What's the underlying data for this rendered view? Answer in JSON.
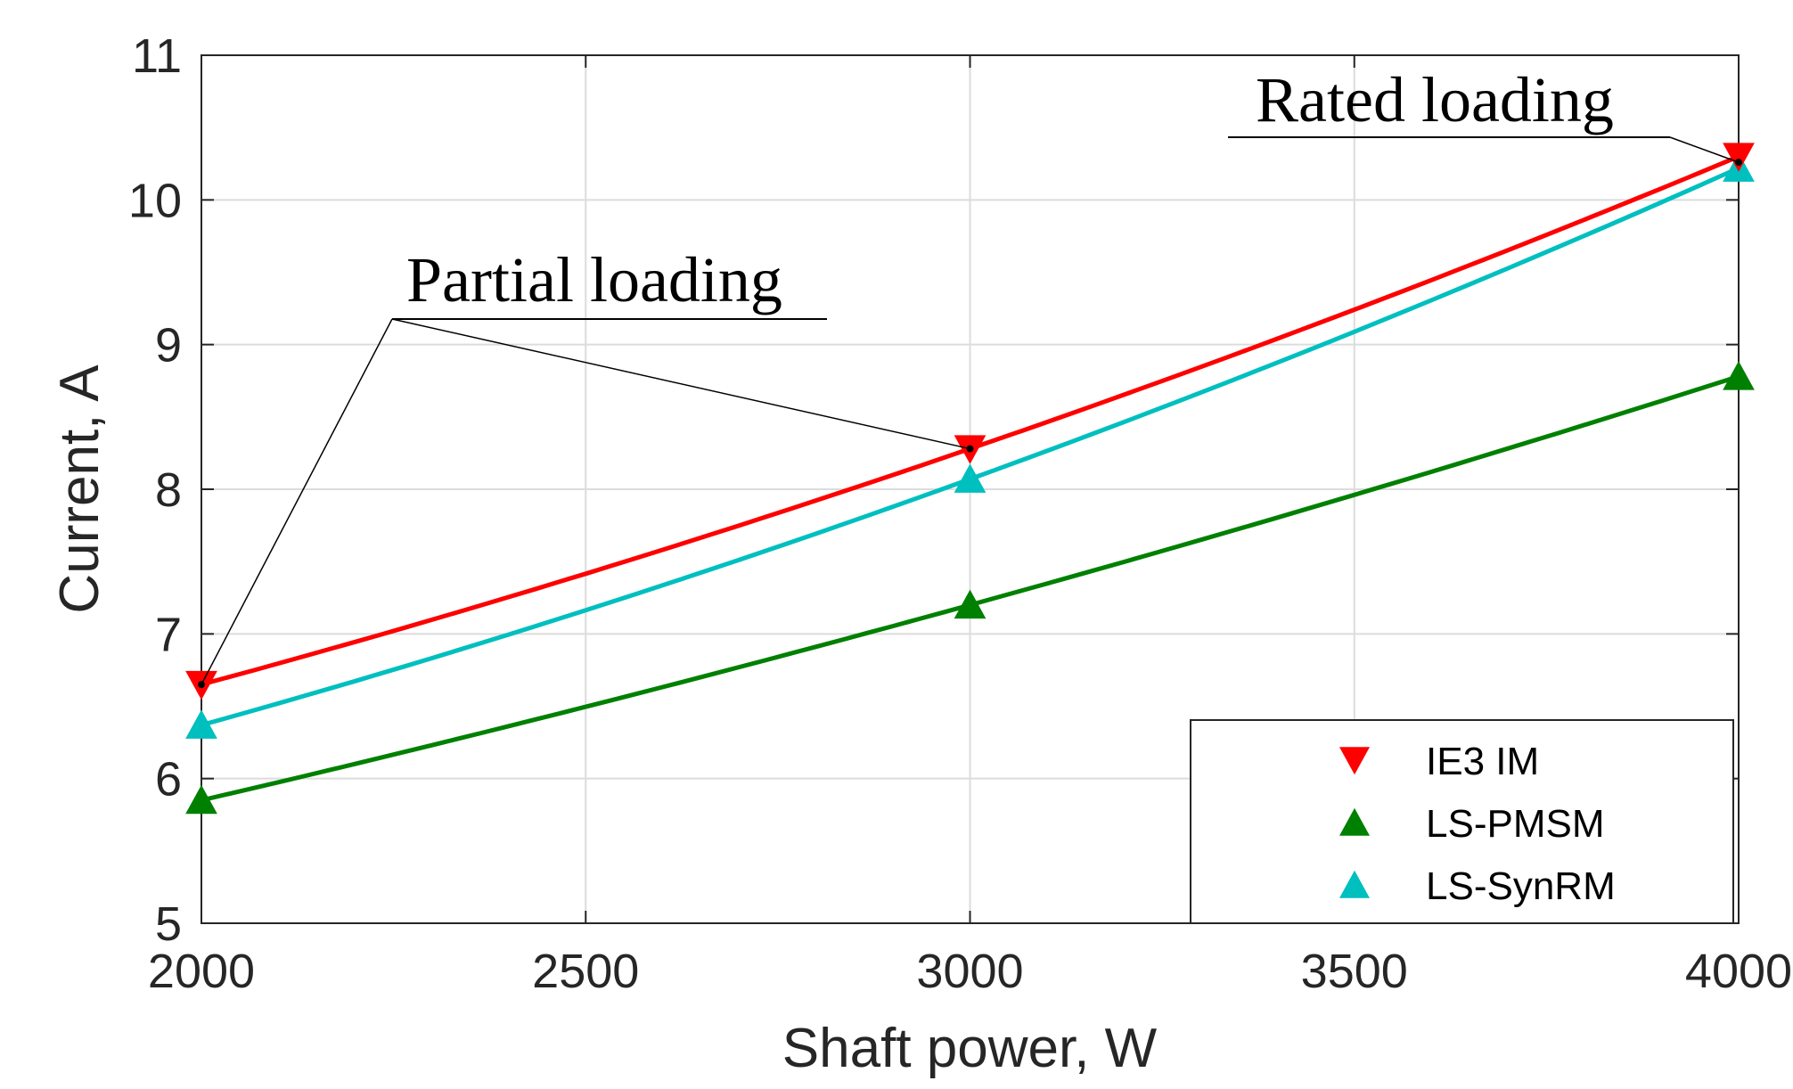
{
  "chart_data": {
    "type": "line",
    "title": "",
    "xlabel": "Shaft power, W",
    "ylabel": "Current, A",
    "xlim": [
      2000,
      4000
    ],
    "ylim": [
      5,
      11
    ],
    "xticks": [
      2000,
      2500,
      3000,
      3500,
      4000
    ],
    "yticks": [
      5,
      6,
      7,
      8,
      9,
      10,
      11
    ],
    "xtick_labels": [
      "2000",
      "2500",
      "3000",
      "3500",
      "4000"
    ],
    "ytick_labels": [
      "5",
      "6",
      "7",
      "8",
      "9",
      "10",
      "11"
    ],
    "grid": true,
    "legend_position": "bottom-right",
    "x": [
      2000,
      3000,
      4000
    ],
    "series": [
      {
        "name": "IE3 IM",
        "values": [
          6.65,
          8.28,
          10.3
        ],
        "color": "#ff0000",
        "marker": "triangle-down"
      },
      {
        "name": "LS-PMSM",
        "values": [
          5.85,
          7.2,
          8.78
        ],
        "color": "#008000",
        "marker": "triangle-up"
      },
      {
        "name": "LS-SynRM",
        "values": [
          6.37,
          8.07,
          10.22
        ],
        "color": "#00bfbf",
        "marker": "triangle-up"
      }
    ],
    "annotations": [
      {
        "text": "Partial loading",
        "points": [
          [
            2000,
            6.65
          ],
          [
            3000,
            8.28
          ]
        ]
      },
      {
        "text": "Rated loading",
        "points": [
          [
            4000,
            10.26
          ]
        ]
      }
    ]
  }
}
